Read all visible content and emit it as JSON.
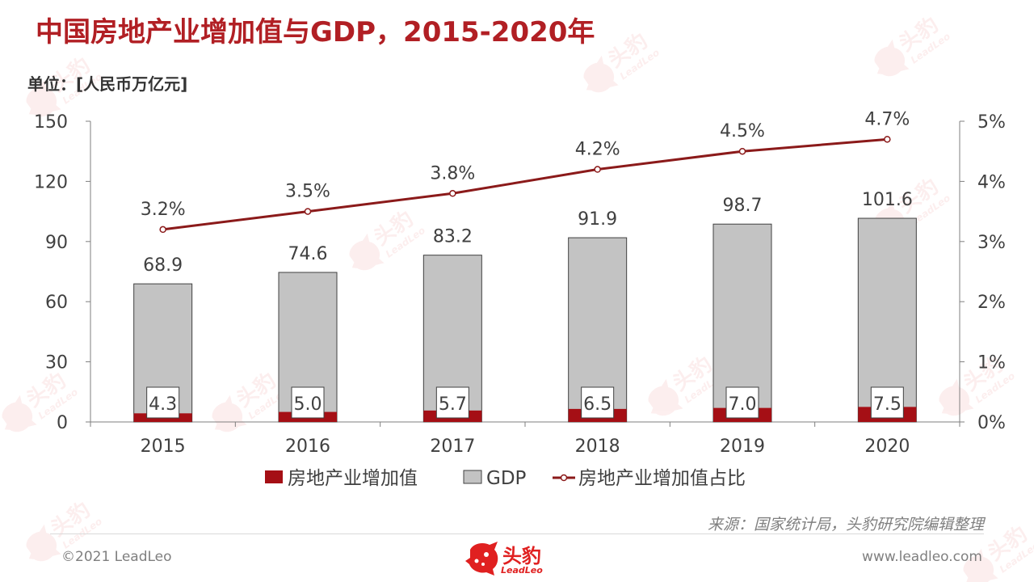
{
  "title": "中国房地产业增加值与GDP，2015-2020年",
  "unit_label": "单位：[人民币万亿元]",
  "source": "来源：国家统计局，头豹研究院编辑整理",
  "footer": {
    "copyright": "©2021 LeadLeo",
    "website": "www.leadleo.com",
    "logo_cn": "头豹",
    "logo_en": "LeadLeo",
    "watermark_cn": "头豹",
    "watermark_en": "LeadLeo"
  },
  "colors": {
    "title": "#b11f24",
    "real_estate_bar": "#a50f15",
    "gdp_bar": "#c3c3c3",
    "share_line": "#8b1a1a",
    "logo": "#e02020"
  },
  "chart_data": {
    "type": "bar",
    "categories": [
      "2015",
      "2016",
      "2017",
      "2018",
      "2019",
      "2020"
    ],
    "series": [
      {
        "name": "房地产业增加值",
        "type": "bar",
        "axis": "left",
        "values": [
          4.3,
          5.0,
          5.7,
          6.5,
          7.0,
          7.5
        ],
        "labels": [
          "4.3",
          "5.0",
          "5.7",
          "6.5",
          "7.0",
          "7.5"
        ]
      },
      {
        "name": "GDP",
        "type": "bar",
        "axis": "left",
        "values": [
          68.9,
          74.6,
          83.2,
          91.9,
          98.7,
          101.6
        ],
        "labels": [
          "68.9",
          "74.6",
          "83.2",
          "91.9",
          "98.7",
          "101.6"
        ]
      },
      {
        "name": "房地产业增加值占比",
        "type": "line",
        "axis": "right",
        "values": [
          3.2,
          3.5,
          3.8,
          4.2,
          4.5,
          4.7
        ],
        "labels": [
          "3.2%",
          "3.5%",
          "3.8%",
          "4.2%",
          "4.5%",
          "4.7%"
        ]
      }
    ],
    "ylim": [
      0,
      150
    ],
    "yticks": [
      "0",
      "30",
      "60",
      "90",
      "120",
      "150"
    ],
    "y2lim": [
      0,
      5
    ],
    "y2ticks": [
      "0%",
      "1%",
      "2%",
      "3%",
      "4%",
      "5%"
    ],
    "legend_position": "bottom",
    "grid": false
  }
}
